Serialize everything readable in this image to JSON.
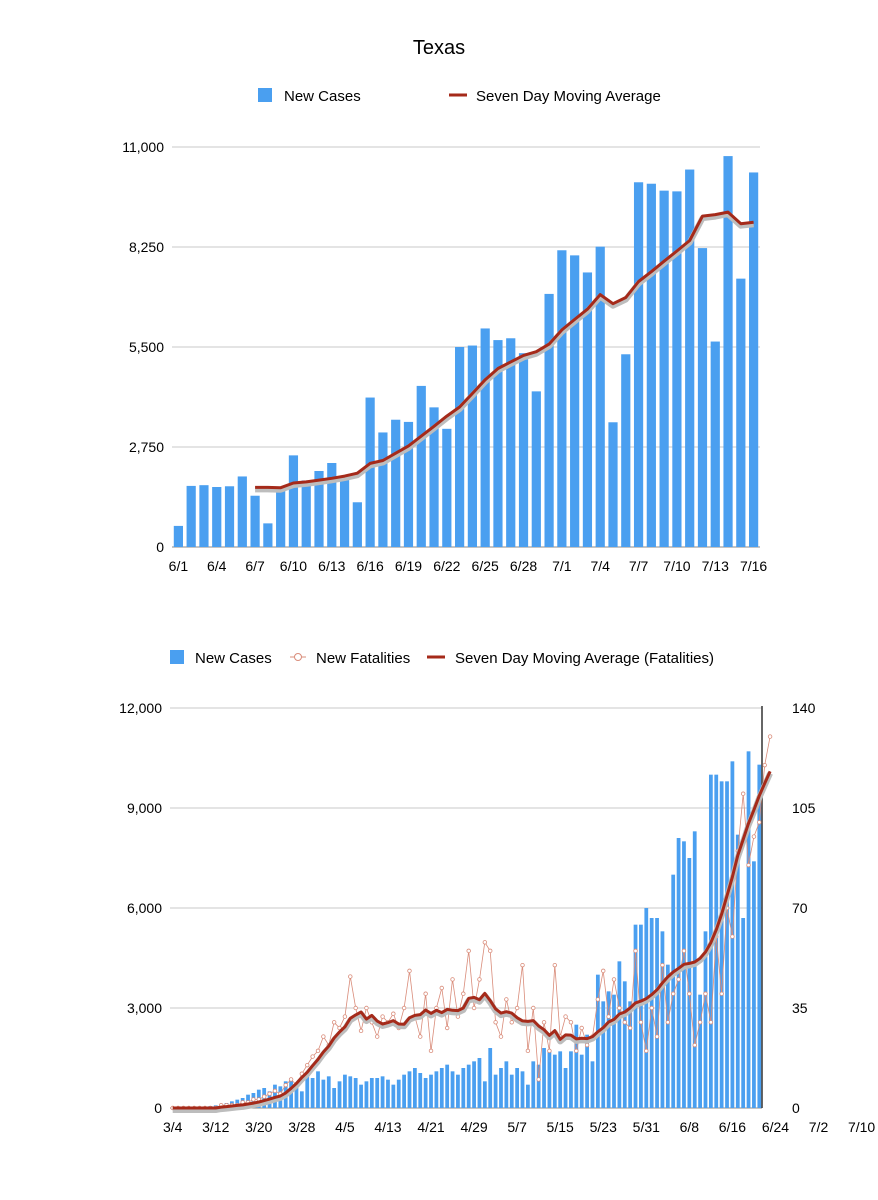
{
  "page_title": "Texas",
  "colors": {
    "bar": "#4a9ff0",
    "line": "#a52a1a",
    "fatality_marker": "#d98c7a",
    "grid": "#c8c8c8"
  },
  "chart_data": [
    {
      "type": "bar",
      "title": "Texas",
      "legend": [
        "New Cases",
        "Seven Day Moving Average"
      ],
      "legend_position": "top",
      "ylim": [
        0,
        11000
      ],
      "yticks": [
        "0",
        "2,750",
        "5,500",
        "8,250",
        "11,000"
      ],
      "xtick_labels": [
        "6/1",
        "6/4",
        "6/7",
        "6/10",
        "6/13",
        "6/16",
        "6/19",
        "6/22",
        "6/25",
        "6/28",
        "7/1",
        "7/4",
        "7/7",
        "7/10",
        "7/13",
        "7/16"
      ],
      "categories": [
        "6/1",
        "6/2",
        "6/3",
        "6/4",
        "6/5",
        "6/6",
        "6/7",
        "6/8",
        "6/9",
        "6/10",
        "6/11",
        "6/12",
        "6/13",
        "6/14",
        "6/15",
        "6/16",
        "6/17",
        "6/18",
        "6/19",
        "6/20",
        "6/21",
        "6/22",
        "6/23",
        "6/24",
        "6/25",
        "6/26",
        "6/27",
        "6/28",
        "6/29",
        "6/30",
        "7/1",
        "7/2",
        "7/3",
        "7/4",
        "7/5",
        "7/6",
        "7/7",
        "7/8",
        "7/9",
        "7/10",
        "7/11",
        "7/12",
        "7/13",
        "7/14",
        "7/15",
        "7/16"
      ],
      "series": [
        {
          "name": "New Cases",
          "values": [
            580,
            1680,
            1700,
            1650,
            1670,
            1940,
            1410,
            650,
            1610,
            2520,
            1830,
            2090,
            2310,
            1870,
            1230,
            4110,
            3150,
            3500,
            3440,
            4430,
            3840,
            3250,
            5500,
            5540,
            6010,
            5690,
            5740,
            5330,
            4280,
            6960,
            8160,
            8020,
            7550,
            8260,
            3430,
            5300,
            10030,
            9990,
            9800,
            9780,
            10380,
            8220,
            5650,
            10750,
            7380,
            10300
          ]
        },
        {
          "name": "Seven Day Moving Average",
          "values": [
            null,
            null,
            null,
            null,
            null,
            null,
            1640,
            1640,
            1630,
            1760,
            1790,
            1840,
            1890,
            1950,
            2030,
            2300,
            2380,
            2580,
            2780,
            3050,
            3320,
            3600,
            3850,
            4220,
            4600,
            4910,
            5090,
            5270,
            5370,
            5580,
            5970,
            6260,
            6540,
            6940,
            6690,
            6860,
            7300,
            7570,
            7860,
            8140,
            8430,
            9100,
            9140,
            9210,
            8890,
            8930
          ]
        }
      ]
    },
    {
      "type": "bar",
      "title": "",
      "legend": [
        "New Cases",
        "New Fatalities",
        "Seven Day Moving Average (Fatalities)"
      ],
      "legend_position": "top",
      "ylim": [
        0,
        12000
      ],
      "yticks": [
        "0",
        "3,000",
        "6,000",
        "9,000",
        "12,000"
      ],
      "y2lim": [
        0,
        140
      ],
      "y2ticks": [
        "0",
        "35",
        "70",
        "105",
        "140"
      ],
      "xtick_labels": [
        "3/4",
        "3/12",
        "3/20",
        "3/28",
        "4/5",
        "4/13",
        "4/21",
        "4/29",
        "5/7",
        "5/15",
        "5/23",
        "5/31",
        "6/8",
        "6/16",
        "6/24",
        "7/2",
        "7/10"
      ],
      "series": [
        {
          "name": "New Cases",
          "axis": "left",
          "values": [
            5,
            0,
            10,
            10,
            20,
            20,
            40,
            60,
            80,
            100,
            150,
            200,
            250,
            300,
            400,
            450,
            550,
            600,
            500,
            700,
            650,
            800,
            900,
            750,
            500,
            1000,
            900,
            1100,
            850,
            950,
            600,
            800,
            1000,
            950,
            900,
            700,
            800,
            900,
            900,
            950,
            850,
            700,
            850,
            1000,
            1100,
            1200,
            1050,
            900,
            1000,
            1100,
            1200,
            1300,
            1100,
            1000,
            1200,
            1300,
            1400,
            1500,
            800,
            1800,
            1000,
            1200,
            1400,
            1000,
            1200,
            1100,
            700,
            1400,
            1300,
            1800,
            1700,
            1600,
            1700,
            1200,
            1700,
            2500,
            1600,
            2200,
            1400,
            4000,
            3200,
            3500,
            3400,
            4400,
            3800,
            3200,
            5500,
            5500,
            6000,
            5700,
            5700,
            5300,
            4300,
            7000,
            8100,
            8000,
            7500,
            8300,
            3400,
            5300,
            10000,
            10000,
            9800,
            9800,
            10400,
            8200,
            5700,
            10700,
            7400,
            10300
          ]
        },
        {
          "name": "New Fatalities",
          "axis": "right",
          "values": [
            0,
            0,
            0,
            0,
            0,
            0,
            0,
            0,
            0,
            1,
            1,
            1,
            1,
            2,
            2,
            3,
            3,
            4,
            5,
            6,
            5,
            8,
            10,
            8,
            12,
            15,
            18,
            20,
            25,
            22,
            30,
            28,
            32,
            46,
            35,
            27,
            35,
            30,
            25,
            32,
            30,
            33,
            28,
            35,
            48,
            32,
            25,
            40,
            20,
            35,
            42,
            28,
            45,
            32,
            40,
            55,
            35,
            45,
            58,
            55,
            30,
            25,
            38,
            30,
            35,
            50,
            20,
            35,
            10,
            30,
            20,
            50,
            25,
            32,
            30,
            20,
            28,
            22,
            25,
            38,
            48,
            32,
            45,
            35,
            30,
            28,
            55,
            30,
            20,
            35,
            25,
            50,
            30,
            40,
            45,
            55,
            40,
            22,
            30,
            40,
            30,
            60,
            40,
            70,
            60,
            90,
            110,
            85,
            95,
            100,
            120,
            130
          ]
        },
        {
          "name": "Seven Day Moving Average (Fatalities)",
          "axis": "right",
          "values": [
            0,
            0,
            0,
            0,
            0,
            0,
            0,
            0,
            0,
            0.3,
            0.5,
            0.7,
            0.9,
            1.1,
            1.4,
            1.7,
            2.1,
            2.6,
            3.1,
            3.7,
            4.2,
            5.3,
            6.9,
            8.6,
            10.7,
            12.5,
            14.8,
            17,
            19.6,
            21.7,
            24.5,
            26.6,
            28.4,
            31.4,
            32.6,
            33.6,
            31.1,
            32.4,
            30.4,
            29.4,
            29.9,
            30.6,
            29.4,
            29.3,
            31.6,
            32.4,
            32.7,
            34.3,
            33.1,
            34.2,
            33.4,
            34.5,
            34.2,
            34.1,
            35,
            38.4,
            38.7,
            37.9,
            40.1,
            37.6,
            34.7,
            33.2,
            33.7,
            33.2,
            31.6,
            30.5,
            30.3,
            30.6,
            28.7,
            27.4,
            25.4,
            27.1,
            24,
            25.6,
            25.5,
            24.2,
            24.4,
            24.3,
            25,
            26.7,
            28.1,
            30.1,
            31,
            32.9,
            33.6,
            35,
            36.8,
            37.4,
            38.3,
            39.7,
            41.4,
            43.8,
            45.9,
            47.6,
            48.9,
            50.3,
            50.6,
            51.1,
            52.4,
            54.6,
            57.9,
            62.4,
            67.8,
            74.3,
            80.9,
            88.4,
            94,
            99.6,
            104.3,
            109.3,
            113.6,
            117.8
          ]
        }
      ]
    }
  ]
}
